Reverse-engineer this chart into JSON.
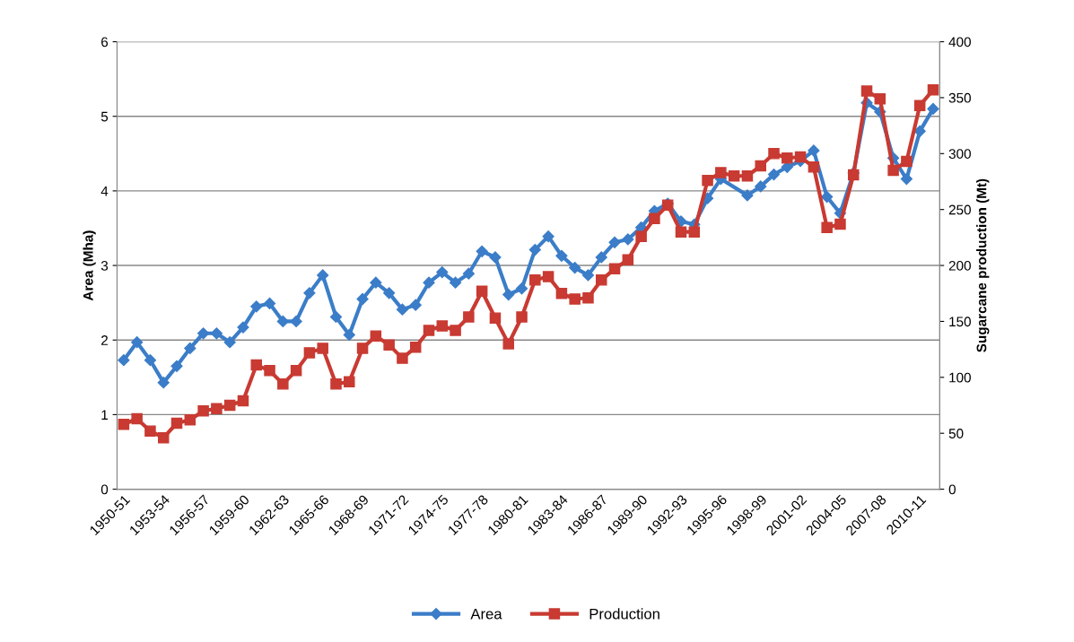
{
  "chart_data": {
    "type": "line",
    "categories": [
      "1950-51",
      null,
      null,
      "1953-54",
      null,
      null,
      "1956-57",
      null,
      null,
      "1959-60",
      null,
      null,
      "1962-63",
      null,
      null,
      "1965-66",
      null,
      null,
      "1968-69",
      null,
      null,
      "1971-72",
      null,
      null,
      "1974-75",
      null,
      null,
      "1977-78",
      null,
      null,
      "1980-81",
      null,
      null,
      "1983-84",
      null,
      null,
      "1986-87",
      null,
      null,
      "1989-90",
      null,
      null,
      "1992-93",
      null,
      null,
      "1995-96",
      null,
      null,
      "1998-99",
      null,
      null,
      "2001-02",
      null,
      null,
      "2004-05",
      null,
      null,
      "2007-08",
      null,
      null,
      "2010-11",
      null
    ],
    "ylabel": "Area (Mha)",
    "y2label": "Sugarcane production (Mt)",
    "ylim": [
      0,
      6
    ],
    "yticks": [
      0,
      1,
      2,
      3,
      4,
      5,
      6
    ],
    "y2lim": [
      0,
      400
    ],
    "y2ticks": [
      0,
      50,
      100,
      150,
      200,
      250,
      300,
      350,
      400
    ],
    "grid": "y",
    "legend": "bottom",
    "series": [
      {
        "name": "Area",
        "color": "#3b7dc8",
        "marker": "diamond",
        "values": [
          1.73,
          1.97,
          1.73,
          1.43,
          1.65,
          1.89,
          2.09,
          2.09,
          1.97,
          2.17,
          2.45,
          2.49,
          2.25,
          2.25,
          2.63,
          2.87,
          2.31,
          2.07,
          2.55,
          2.77,
          2.63,
          2.41,
          2.47,
          2.77,
          2.91,
          2.77,
          2.89,
          3.19,
          3.11,
          2.61,
          2.69,
          3.21,
          3.39,
          3.13,
          2.97,
          2.87,
          3.11,
          3.31,
          3.35,
          3.51,
          3.73,
          3.83,
          3.59,
          3.55,
          3.9,
          4.16,
          null,
          3.94,
          4.06,
          4.22,
          4.32,
          4.4,
          4.54,
          3.92,
          3.7,
          4.24,
          5.18,
          5.06,
          4.44,
          4.16,
          4.8,
          5.1
        ]
      },
      {
        "name": "Production",
        "color": "#c83a32",
        "marker": "square",
        "axis": "y2",
        "values": [
          58,
          63,
          52,
          46,
          59,
          62,
          70,
          72,
          75,
          79,
          111,
          106,
          94,
          106,
          122,
          126,
          94,
          96,
          126,
          137,
          129,
          117,
          127,
          142,
          146,
          142,
          154,
          177,
          153,
          130,
          154,
          187,
          190,
          175,
          170,
          171,
          187,
          197,
          205,
          226,
          242,
          254,
          230,
          230,
          276,
          283,
          280,
          280,
          289,
          300,
          296,
          297,
          288,
          234,
          237,
          281,
          356,
          349,
          285,
          293,
          343,
          357
        ]
      }
    ]
  }
}
